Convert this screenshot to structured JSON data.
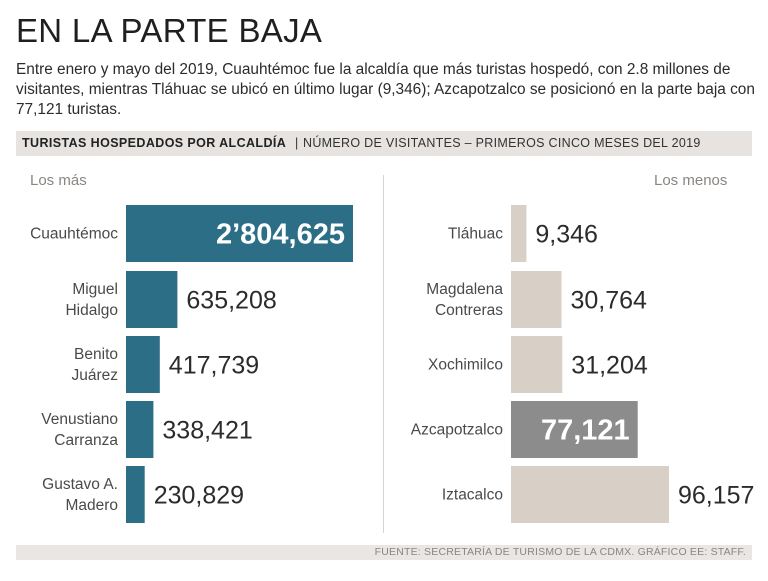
{
  "title": "EN LA PARTE BAJA",
  "subtitle": "Entre enero y mayo del 2019, Cuauhtémoc fue la alcaldía que más turistas hospedó, con 2.8 millones de visitantes, mientras Tláhuac se ubicó en último lugar (9,346); Azcapotzalco se posicionó en la parte baja con 77,121 turistas.",
  "header": {
    "strong": "TURISTAS HOSPEDADOS POR ALCALDÍA",
    "separator": "|",
    "light": "NÚMERO DE VISITANTES – PRIMEROS CINCO MESES DEL 2019"
  },
  "footer": "FUENTE: SECRETARÍA DE TURISMO DE LA CDMX. GRÁFICO EE: STAFF.",
  "colors": {
    "left_bar": "#2c6e86",
    "right_bar": "#d8cfc6",
    "right_highlight": "#8c8c8c",
    "label_text": "#4a4a4a",
    "value_text": "#2b2b2b",
    "value_highlight_text": "#ffffff"
  },
  "chart_data": [
    {
      "type": "bar",
      "orientation": "horizontal",
      "title": "Los más",
      "categories": [
        "Cuauhtémoc",
        "Miguel Hidalgo",
        "Benito Juárez",
        "Venustiano Carranza",
        "Gustavo A. Madero"
      ],
      "category_lines": [
        [
          "Cuauhtémoc"
        ],
        [
          "Miguel",
          "Hidalgo"
        ],
        [
          "Benito",
          "Juárez"
        ],
        [
          "Venustiano",
          "Carranza"
        ],
        [
          "Gustavo A.",
          "Madero"
        ]
      ],
      "values": [
        2804625,
        635208,
        417739,
        338421,
        230829
      ],
      "value_labels": [
        "2’804,625",
        "635,208",
        "417,739",
        "338,421",
        "230,829"
      ],
      "highlight": [
        true,
        false,
        false,
        false,
        false
      ],
      "xlim": [
        0,
        2804625
      ]
    },
    {
      "type": "bar",
      "orientation": "horizontal",
      "title": "Los menos",
      "categories": [
        "Tláhuac",
        "Magdalena Contreras",
        "Xochimilco",
        "Azcapotzalco",
        "Iztacalco"
      ],
      "category_lines": [
        [
          "Tláhuac"
        ],
        [
          "Magdalena",
          "Contreras"
        ],
        [
          "Xochimilco"
        ],
        [
          "Azcapotzalco"
        ],
        [
          "Iztacalco"
        ]
      ],
      "values": [
        9346,
        30764,
        31204,
        77121,
        96157
      ],
      "value_labels": [
        "9,346",
        "30,764",
        "31,204",
        "77,121",
        "96,157"
      ],
      "highlight": [
        false,
        false,
        false,
        true,
        false
      ],
      "xlim": [
        0,
        96157
      ]
    }
  ]
}
